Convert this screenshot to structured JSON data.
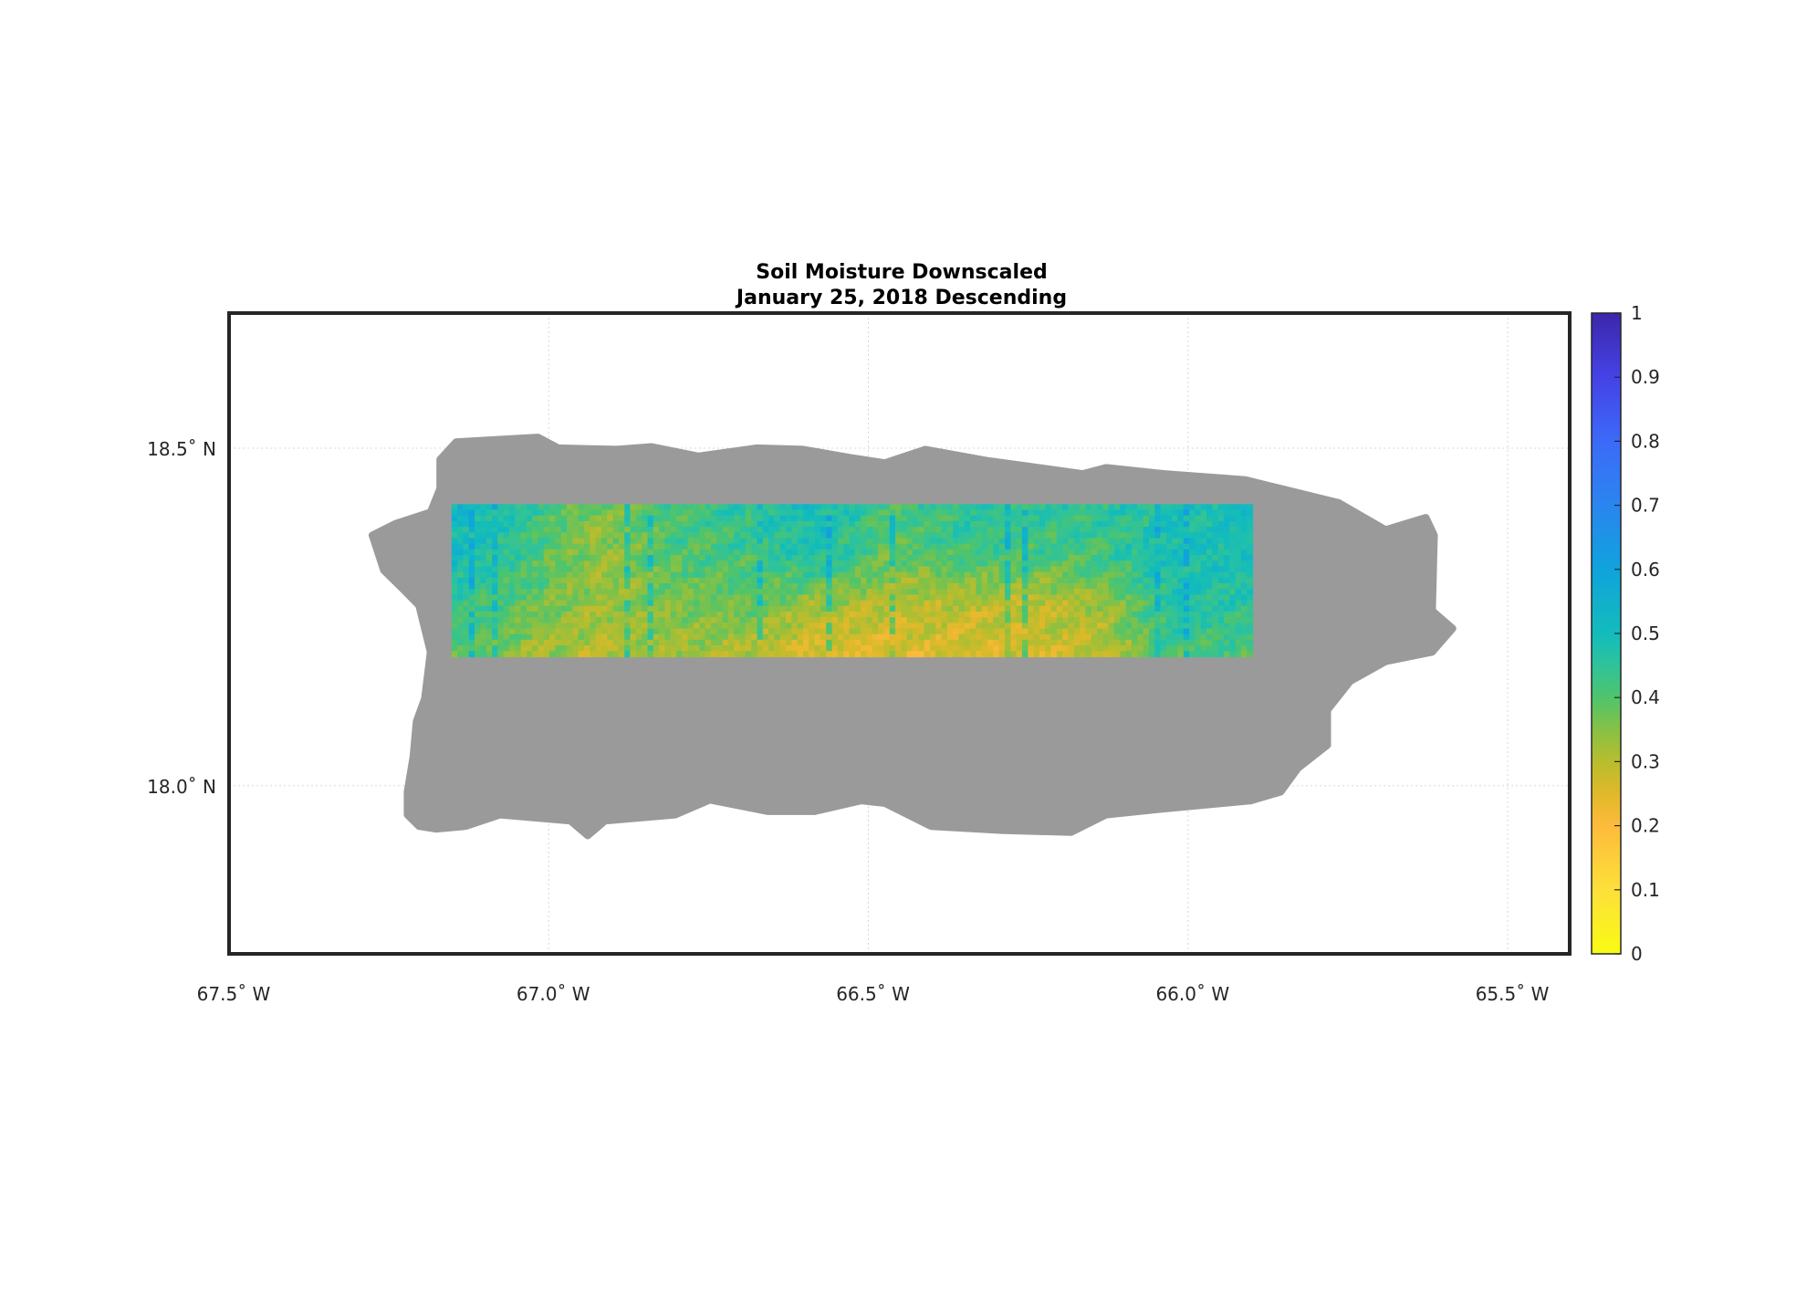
{
  "chart_data": {
    "type": "heatmap",
    "title": [
      "Soil Moisture Downscaled",
      "January 25, 2018 Descending"
    ],
    "xlabel": "",
    "ylabel": "",
    "xlim": [
      -67.5,
      -65.403
    ],
    "ylim": [
      17.751,
      18.7
    ],
    "grid": true,
    "x_ticks": [
      {
        "value": -67.5,
        "label": "67.5˚ W"
      },
      {
        "value": -67.0,
        "label": "67.0˚ W"
      },
      {
        "value": -66.5,
        "label": "66.5˚ W"
      },
      {
        "value": -66.0,
        "label": "66.0˚ W"
      },
      {
        "value": -65.5,
        "label": "65.5˚ W"
      }
    ],
    "y_ticks": [
      {
        "value": 18.5,
        "label": "18.5˚ N"
      },
      {
        "value": 18.0,
        "label": "18.0˚ N"
      }
    ],
    "colorbar": {
      "range": [
        0,
        1
      ],
      "position": "right",
      "ticks": [
        "0",
        "0.1",
        "0.2",
        "0.3",
        "0.4",
        "0.5",
        "0.6",
        "0.7",
        "0.8",
        "0.9",
        "1"
      ],
      "colormap": [
        [
          0,
          "#f9fb14"
        ],
        [
          0.1,
          "#fde03a"
        ],
        [
          0.2,
          "#fdbb3b"
        ],
        [
          0.25,
          "#e0b92a"
        ],
        [
          0.3,
          "#b8bd2e"
        ],
        [
          0.35,
          "#86c145"
        ],
        [
          0.4,
          "#4fc46c"
        ],
        [
          0.45,
          "#2fc39a"
        ],
        [
          0.5,
          "#12bcbc"
        ],
        [
          0.6,
          "#10a3dc"
        ],
        [
          0.7,
          "#2a85f0"
        ],
        [
          0.8,
          "#3c6af8"
        ],
        [
          0.9,
          "#4542e6"
        ],
        [
          1,
          "#3b27aa"
        ]
      ]
    },
    "no_data_color": "#9a9a9a",
    "land_outline_lonlat": [
      [
        -67.17,
        18.483
      ],
      [
        -67.145,
        18.509
      ],
      [
        -67.017,
        18.516
      ],
      [
        -66.985,
        18.5
      ],
      [
        -66.893,
        18.498
      ],
      [
        -66.839,
        18.502
      ],
      [
        -66.766,
        18.488
      ],
      [
        -66.675,
        18.5
      ],
      [
        -66.602,
        18.498
      ],
      [
        -66.529,
        18.486
      ],
      [
        -66.474,
        18.478
      ],
      [
        -66.411,
        18.498
      ],
      [
        -66.311,
        18.481
      ],
      [
        -66.256,
        18.474
      ],
      [
        -66.165,
        18.462
      ],
      [
        -66.128,
        18.471
      ],
      [
        -66.037,
        18.462
      ],
      [
        -65.91,
        18.453
      ],
      [
        -65.855,
        18.44
      ],
      [
        -65.764,
        18.419
      ],
      [
        -65.691,
        18.379
      ],
      [
        -65.628,
        18.397
      ],
      [
        -65.615,
        18.371
      ],
      [
        -65.618,
        18.259
      ],
      [
        -65.586,
        18.233
      ],
      [
        -65.618,
        18.198
      ],
      [
        -65.691,
        18.184
      ],
      [
        -65.746,
        18.155
      ],
      [
        -65.782,
        18.112
      ],
      [
        -65.782,
        18.06
      ],
      [
        -65.828,
        18.026
      ],
      [
        -65.855,
        17.991
      ],
      [
        -65.901,
        17.978
      ],
      [
        -66.037,
        17.966
      ],
      [
        -66.128,
        17.957
      ],
      [
        -66.183,
        17.931
      ],
      [
        -66.292,
        17.934
      ],
      [
        -66.402,
        17.94
      ],
      [
        -66.474,
        17.974
      ],
      [
        -66.511,
        17.978
      ],
      [
        -66.584,
        17.962
      ],
      [
        -66.657,
        17.962
      ],
      [
        -66.748,
        17.979
      ],
      [
        -66.802,
        17.957
      ],
      [
        -66.912,
        17.948
      ],
      [
        -66.939,
        17.926
      ],
      [
        -66.966,
        17.948
      ],
      [
        -67.076,
        17.957
      ],
      [
        -67.13,
        17.94
      ],
      [
        -67.176,
        17.936
      ],
      [
        -67.203,
        17.94
      ],
      [
        -67.221,
        17.957
      ],
      [
        -67.221,
        17.991
      ],
      [
        -67.212,
        18.043
      ],
      [
        -67.207,
        18.095
      ],
      [
        -67.194,
        18.129
      ],
      [
        -67.185,
        18.198
      ],
      [
        -67.203,
        18.267
      ],
      [
        -67.23,
        18.293
      ],
      [
        -67.258,
        18.319
      ],
      [
        -67.276,
        18.371
      ],
      [
        -67.24,
        18.388
      ],
      [
        -67.185,
        18.405
      ],
      [
        -67.17,
        18.44
      ]
    ],
    "swath": {
      "lon_range": [
        -67.152,
        -65.899
      ],
      "lat_range": [
        18.191,
        18.417
      ],
      "approx_values_rows_north_to_south": [
        [
          0.52,
          0.45,
          0.35,
          0.42,
          0.45,
          0.5,
          0.42,
          0.45,
          0.45,
          0.45,
          0.47,
          0.5
        ],
        [
          0.5,
          0.42,
          0.33,
          0.4,
          0.42,
          0.48,
          0.38,
          0.42,
          0.42,
          0.42,
          0.5,
          0.48
        ],
        [
          0.45,
          0.38,
          0.33,
          0.36,
          0.38,
          0.33,
          0.3,
          0.3,
          0.28,
          0.33,
          0.48,
          0.45
        ],
        [
          0.4,
          0.33,
          0.3,
          0.32,
          0.3,
          0.25,
          0.25,
          0.26,
          0.27,
          0.3,
          0.42,
          0.4
        ]
      ]
    }
  }
}
